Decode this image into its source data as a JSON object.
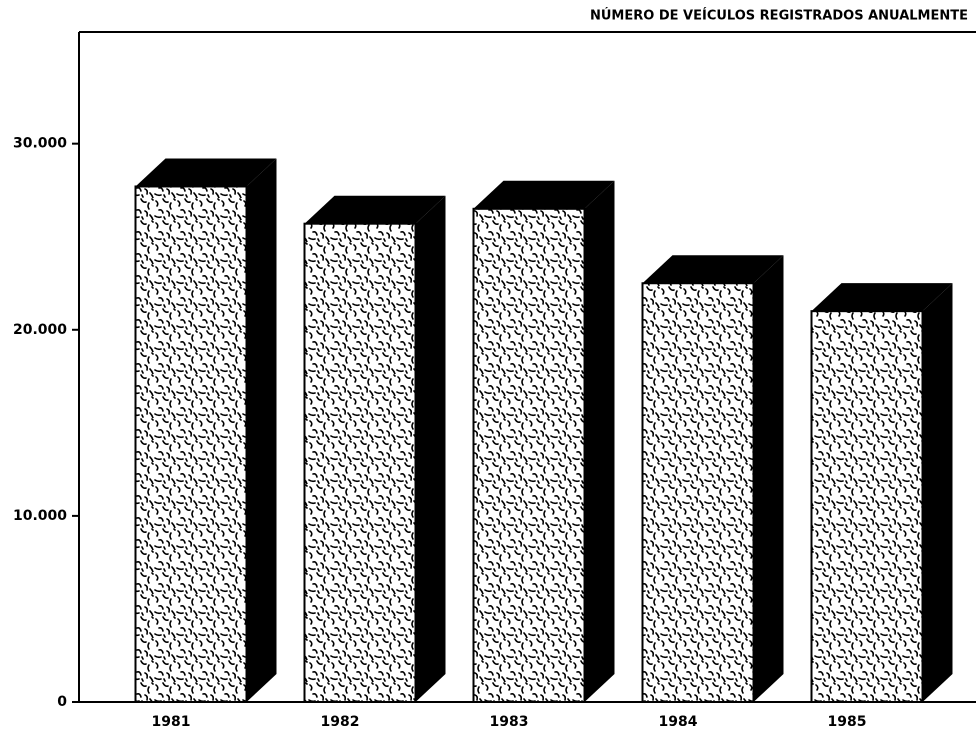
{
  "chart_data": {
    "type": "bar3d",
    "title": "NÚMERO DE VEÍCULOS REGISTRADOS ANUALMENTE",
    "categories": [
      "1981",
      "1982",
      "1983",
      "1984",
      "1985"
    ],
    "values": [
      27700,
      25700,
      26500,
      22500,
      21000
    ],
    "color": "#000000",
    "ylim": [
      0,
      36000
    ],
    "yticks": [
      0,
      {
        "value": 10000,
        "label": "10.000"
      },
      {
        "value": 20000,
        "label": "20.000"
      },
      {
        "value": 30000,
        "label": "30.000"
      }
    ]
  }
}
